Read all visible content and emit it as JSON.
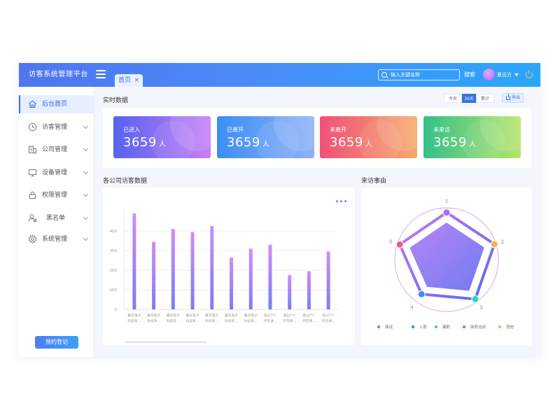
{
  "header": {
    "logo": "访客系统管理平台",
    "tab_label": "首页",
    "tab_close": "×",
    "search_placeholder": "输入关键名称",
    "search_label": "搜索",
    "username": "夏远方"
  },
  "sidebar": {
    "items": [
      {
        "label": "后台首页",
        "icon": "home-icon"
      },
      {
        "label": "访客管理",
        "icon": "clock-icon"
      },
      {
        "label": "公司管理",
        "icon": "building-icon"
      },
      {
        "label": "设备管理",
        "icon": "monitor-icon"
      },
      {
        "label": "权限管理",
        "icon": "lock-icon"
      },
      {
        "label": "黑名单",
        "icon": "user-block-icon"
      },
      {
        "label": "系统管理",
        "icon": "gear-icon"
      }
    ],
    "reserve_button": "预约登记"
  },
  "realtime": {
    "title": "实时数据",
    "ranges": [
      "今天",
      "30天",
      "累计"
    ],
    "active_range": "30天",
    "export_label": "导出",
    "cards": [
      {
        "label": "已进入",
        "value": "3659",
        "unit": "人",
        "colors": [
          "#5563f0",
          "#c77ef8"
        ]
      },
      {
        "label": "已离开",
        "value": "3659",
        "unit": "人",
        "colors": [
          "#3b8ef5",
          "#8fb2f8"
        ]
      },
      {
        "label": "未离开",
        "value": "3659",
        "unit": "人",
        "colors": [
          "#f0517a",
          "#f6a96a"
        ]
      },
      {
        "label": "未来访",
        "value": "3659",
        "unit": "人",
        "colors": [
          "#34c08a",
          "#b5e56a"
        ]
      }
    ]
  },
  "company_chart": {
    "title": "各公司访客数据",
    "chart_data": {
      "type": "bar",
      "categories": [
        "襄华电子科技有…",
        "襄华电子科技有…",
        "襄华电子科技有…",
        "襄华电子科技有…",
        "襄华电子科技有…",
        "襄华电子科技有…",
        "襄华电子科技有…",
        "超过7个字符请…",
        "超过7个字符请…",
        "超过7个字符请…",
        "超过7个字符请…"
      ],
      "values": [
        490,
        345,
        410,
        395,
        425,
        265,
        310,
        330,
        175,
        195,
        295
      ],
      "y_ticks": [
        "0",
        "100",
        "200",
        "300",
        "400",
        "500"
      ],
      "ylim": [
        0,
        500
      ],
      "bar_colors": [
        "#cf8ef7",
        "#7a7cf5"
      ]
    }
  },
  "reason_chart": {
    "title": "来访事由",
    "chart_data": {
      "type": "radar",
      "axes": [
        "1",
        "2",
        "3",
        "4",
        "5"
      ],
      "values": [
        0.92,
        0.98,
        0.95,
        0.83,
        0.96
      ],
      "series": [
        {
          "name": "面试",
          "color": "#a86cf5"
        },
        {
          "name": "入职",
          "color": "#3a8ef5"
        },
        {
          "name": "离职",
          "color": "#2ed3c4"
        },
        {
          "name": "商务洽谈",
          "color": "#f05a86"
        },
        {
          "name": "其他",
          "color": "#ffb03a"
        }
      ]
    }
  }
}
